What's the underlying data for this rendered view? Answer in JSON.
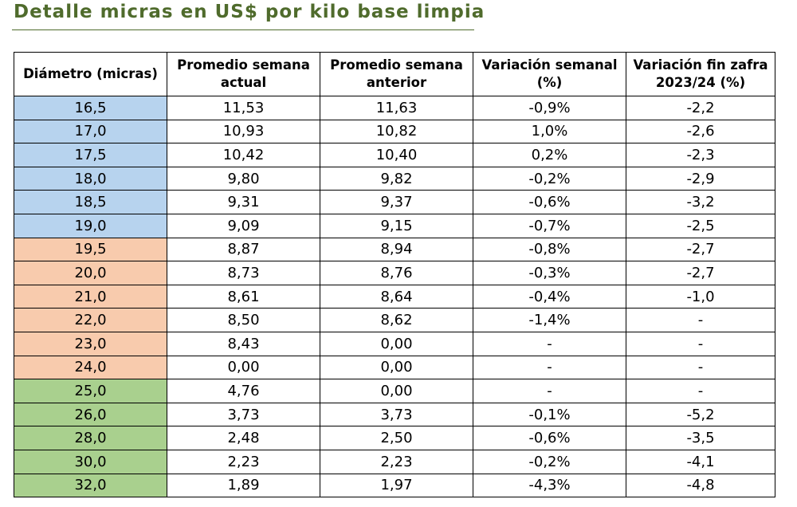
{
  "title": "Detalle micras en US$ por kilo base limpia",
  "colors": {
    "title": "#4f6b2c",
    "group_blue": "#b7d3ee",
    "group_orange": "#f8cbad",
    "group_green": "#a9d08e"
  },
  "table": {
    "headers": [
      "Diámetro (micras)",
      "Promedio semana actual",
      "Promedio semana anterior",
      "Variación semanal (%)",
      "Variación fin zafra 2023/24 (%)"
    ],
    "rows": [
      {
        "group": "blue",
        "cells": [
          "16,5",
          "11,53",
          "11,63",
          "-0,9%",
          "-2,2"
        ]
      },
      {
        "group": "blue",
        "cells": [
          "17,0",
          "10,93",
          "10,82",
          "1,0%",
          "-2,6"
        ]
      },
      {
        "group": "blue",
        "cells": [
          "17,5",
          "10,42",
          "10,40",
          "0,2%",
          "-2,3"
        ]
      },
      {
        "group": "blue",
        "cells": [
          "18,0",
          "9,80",
          "9,82",
          "-0,2%",
          "-2,9"
        ]
      },
      {
        "group": "blue",
        "cells": [
          "18,5",
          "9,31",
          "9,37",
          "-0,6%",
          "-3,2"
        ]
      },
      {
        "group": "blue",
        "cells": [
          "19,0",
          "9,09",
          "9,15",
          "-0,7%",
          "-2,5"
        ]
      },
      {
        "group": "orange",
        "cells": [
          "19,5",
          "8,87",
          "8,94",
          "-0,8%",
          "-2,7"
        ]
      },
      {
        "group": "orange",
        "cells": [
          "20,0",
          "8,73",
          "8,76",
          "-0,3%",
          "-2,7"
        ]
      },
      {
        "group": "orange",
        "cells": [
          "21,0",
          "8,61",
          "8,64",
          "-0,4%",
          "-1,0"
        ]
      },
      {
        "group": "orange",
        "cells": [
          "22,0",
          "8,50",
          "8,62",
          "-1,4%",
          "-"
        ]
      },
      {
        "group": "orange",
        "cells": [
          "23,0",
          "8,43",
          "0,00",
          "-",
          "-"
        ]
      },
      {
        "group": "orange",
        "cells": [
          "24,0",
          "0,00",
          "0,00",
          "-",
          "-"
        ]
      },
      {
        "group": "green",
        "cells": [
          "25,0",
          "4,76",
          "0,00",
          "-",
          "-"
        ]
      },
      {
        "group": "green",
        "cells": [
          "26,0",
          "3,73",
          "3,73",
          "-0,1%",
          "-5,2"
        ]
      },
      {
        "group": "green",
        "cells": [
          "28,0",
          "2,48",
          "2,50",
          "-0,6%",
          "-3,5"
        ]
      },
      {
        "group": "green",
        "cells": [
          "30,0",
          "2,23",
          "2,23",
          "-0,2%",
          "-4,1"
        ]
      },
      {
        "group": "green",
        "cells": [
          "32,0",
          "1,89",
          "1,97",
          "-4,3%",
          "-4,8"
        ]
      }
    ]
  }
}
